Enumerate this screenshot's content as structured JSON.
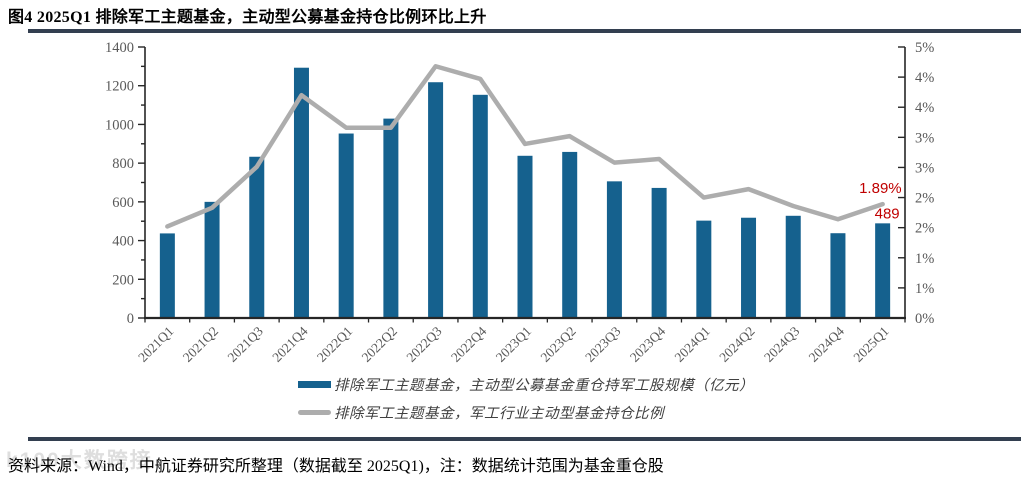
{
  "header": {
    "title": "图4  2025Q1 排除军工主题基金，主动型公募基金持仓比例环比上升"
  },
  "legend": [
    {
      "label": "排除军工主题基金，主动型公募基金重仓持军工股规模（亿元）",
      "type": "bar",
      "color": "#15618E"
    },
    {
      "label": "排除军工主题基金，军工行业主动型基金持仓比例",
      "type": "line",
      "color": "#ADADAD"
    }
  ],
  "footer": {
    "source": "资料来源：Wind，中航证券研究所整理（数据截至 2025Q1)，注：数据统计范围为基金重仓股",
    "watermark": "k100大数跨接"
  },
  "colors": {
    "bar": "#15618E",
    "line": "#ADADAD",
    "axis": "#262626",
    "tick_label": "#595959",
    "annotation": "#C00000",
    "rule": "#333F50"
  },
  "chart_data": {
    "type": "bar",
    "categories": [
      "2021Q1",
      "2021Q2",
      "2021Q3",
      "2021Q4",
      "2022Q1",
      "2022Q2",
      "2022Q3",
      "2022Q4",
      "2023Q1",
      "2023Q2",
      "2023Q3",
      "2023Q4",
      "2024Q1",
      "2024Q2",
      "2024Q3",
      "2024Q4",
      "2025Q1"
    ],
    "series": [
      {
        "name": "排除军工主题基金，主动型公募基金重仓持军工股规模（亿元）",
        "type": "bar",
        "axis": "left",
        "color": "#15618E",
        "values": [
          437,
          600,
          833,
          1293,
          953,
          1030,
          1218,
          1153,
          838,
          858,
          706,
          672,
          503,
          518,
          528,
          438,
          489
        ]
      },
      {
        "name": "排除军工主题基金，军工行业主动型基金持仓比例",
        "type": "line",
        "axis": "right",
        "color": "#ADADAD",
        "values": [
          1.52,
          1.83,
          2.51,
          3.7,
          3.16,
          3.16,
          4.18,
          3.97,
          2.89,
          3.02,
          2.58,
          2.64,
          2.0,
          2.14,
          1.86,
          1.64,
          1.89
        ]
      }
    ],
    "left_axis": {
      "min": 0,
      "max": 1400,
      "tick_step": 200,
      "minor_step": 100,
      "labels": [
        "0",
        "200",
        "400",
        "600",
        "800",
        "1000",
        "1200",
        "1400"
      ]
    },
    "right_axis": {
      "min": 0,
      "max": 4.5,
      "tick_step": 0.5,
      "labels": [
        "0%",
        "1%",
        "1%",
        "2%",
        "2%",
        "3%",
        "3%",
        "4%",
        "4%",
        "5%"
      ]
    },
    "grid": false,
    "legend_position": "bottom",
    "annotations": [
      {
        "text": "1.89%",
        "category": "2025Q1",
        "series": "line",
        "color": "#C00000"
      },
      {
        "text": "489",
        "category": "2025Q1",
        "series": "bar",
        "color": "#C00000"
      }
    ]
  }
}
